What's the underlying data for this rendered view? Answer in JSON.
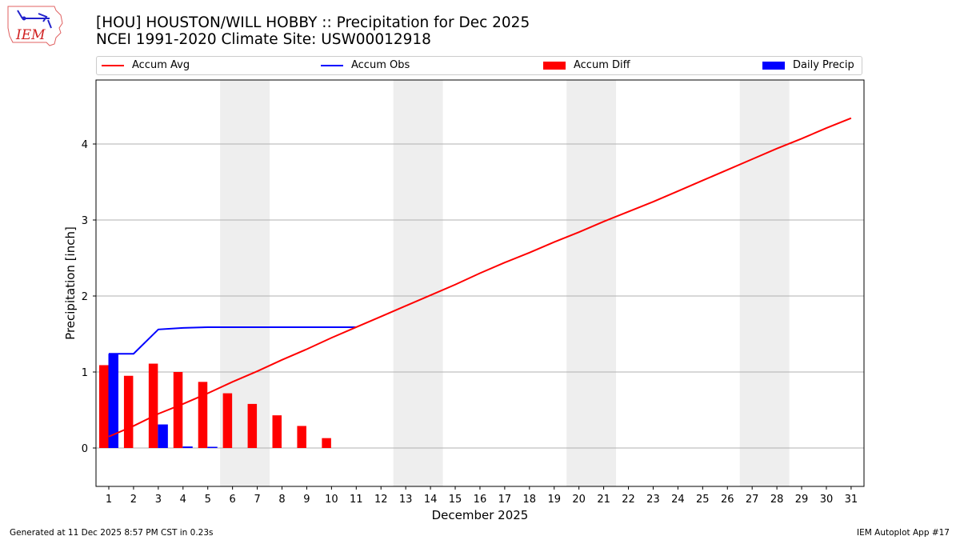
{
  "header": {
    "title_line1": "[HOU] HOUSTON/WILL HOBBY :: Precipitation for Dec 2025",
    "title_line2": "NCEI 1991-2020 Climate Site: USW00012918",
    "logo_text": "IEM"
  },
  "legend": [
    {
      "label": "Accum Avg",
      "kind": "line",
      "color": "#ff0000"
    },
    {
      "label": "Accum Obs",
      "kind": "line",
      "color": "#0000ff"
    },
    {
      "label": "Accum Diff",
      "kind": "patch",
      "color": "#ff0000"
    },
    {
      "label": "Daily Precip",
      "kind": "patch",
      "color": "#0000ff"
    }
  ],
  "footer": {
    "left": "Generated at 11 Dec 2025 8:57 PM CST in 0.23s",
    "right": "IEM Autoplot App #17"
  },
  "colors": {
    "avg": "#ff0000",
    "obs": "#0000ff",
    "diff": "#ff0000",
    "daily": "#0000ff",
    "weekend": "#eeeeee",
    "grid": "#b0b0b0"
  },
  "chart_data": {
    "type": "bar",
    "title": "[HOU] HOUSTON/WILL HOBBY :: Precipitation for Dec 2025",
    "subtitle": "NCEI 1991-2020 Climate Site: USW00012918",
    "xlabel": "December 2025",
    "ylabel": "Precipitation [inch]",
    "ylim": [
      -0.5,
      4.83
    ],
    "yticks": [
      0,
      1,
      2,
      3,
      4
    ],
    "x": [
      1,
      2,
      3,
      4,
      5,
      6,
      7,
      8,
      9,
      10,
      11,
      12,
      13,
      14,
      15,
      16,
      17,
      18,
      19,
      20,
      21,
      22,
      23,
      24,
      25,
      26,
      27,
      28,
      29,
      30,
      31
    ],
    "grid": "y",
    "legend_position": "top",
    "weekend_shading": [
      [
        6,
        7
      ],
      [
        13,
        14
      ],
      [
        20,
        21
      ],
      [
        27,
        28
      ]
    ],
    "series": [
      {
        "name": "Accum Avg",
        "type": "line",
        "color": "#ff0000",
        "x": [
          1,
          2,
          3,
          4,
          5,
          6,
          7,
          8,
          9,
          10,
          11,
          12,
          13,
          14,
          15,
          16,
          17,
          18,
          19,
          20,
          21,
          22,
          23,
          24,
          25,
          26,
          27,
          28,
          29,
          30,
          31
        ],
        "values": [
          0.15,
          0.29,
          0.45,
          0.58,
          0.72,
          0.87,
          1.01,
          1.16,
          1.3,
          1.45,
          1.59,
          1.73,
          1.87,
          2.01,
          2.15,
          2.3,
          2.44,
          2.57,
          2.71,
          2.84,
          2.98,
          3.11,
          3.24,
          3.38,
          3.52,
          3.66,
          3.8,
          3.94,
          4.07,
          4.21,
          4.34
        ]
      },
      {
        "name": "Accum Obs",
        "type": "line",
        "color": "#0000ff",
        "x": [
          1,
          2,
          3,
          4,
          5,
          6,
          7,
          8,
          9,
          10,
          11
        ],
        "values": [
          1.24,
          1.24,
          1.56,
          1.58,
          1.59,
          1.59,
          1.59,
          1.59,
          1.59,
          1.59,
          1.59
        ]
      },
      {
        "name": "Accum Diff",
        "type": "bar",
        "color": "#ff0000",
        "x": [
          1,
          2,
          3,
          4,
          5,
          6,
          7,
          8,
          9,
          10
        ],
        "values": [
          1.09,
          0.95,
          1.11,
          1.0,
          0.87,
          0.72,
          0.58,
          0.43,
          0.29,
          0.13
        ]
      },
      {
        "name": "Daily Precip",
        "type": "bar",
        "color": "#0000ff",
        "x": [
          1,
          3,
          4,
          5
        ],
        "values": [
          1.24,
          0.31,
          0.02,
          0.01
        ]
      }
    ]
  }
}
